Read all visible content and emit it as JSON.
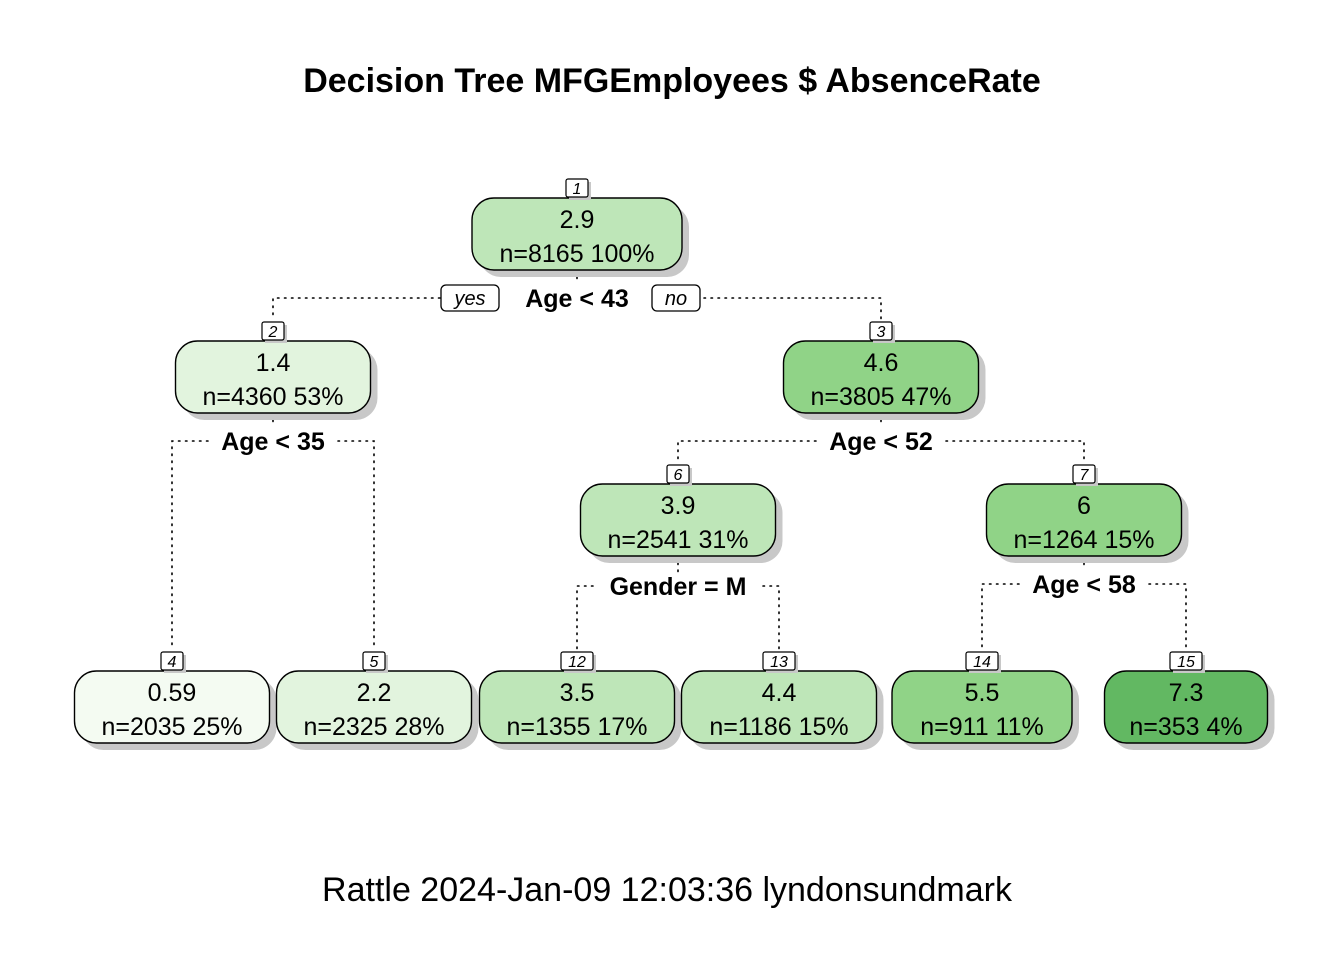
{
  "title": "Decision Tree MFGEmployees $ AbsenceRate",
  "footer": "Rattle 2024-Jan-09 12:03:36 lyndonsundmark",
  "edge_labels": {
    "yes": "yes",
    "no": "no"
  },
  "nodes": [
    {
      "id": "1",
      "value": "2.9",
      "stats": "n=8165  100%",
      "fill": "#bee6b8"
    },
    {
      "id": "2",
      "value": "1.4",
      "stats": "n=4360  53%",
      "fill": "#e2f4de"
    },
    {
      "id": "3",
      "value": "4.6",
      "stats": "n=3805  47%",
      "fill": "#90d387"
    },
    {
      "id": "4",
      "value": "0.59",
      "stats": "n=2035  25%",
      "fill": "#f4fbf2"
    },
    {
      "id": "5",
      "value": "2.2",
      "stats": "n=2325  28%",
      "fill": "#e2f4de"
    },
    {
      "id": "6",
      "value": "3.9",
      "stats": "n=2541  31%",
      "fill": "#bee6b8"
    },
    {
      "id": "7",
      "value": "6",
      "stats": "n=1264  15%",
      "fill": "#90d387"
    },
    {
      "id": "12",
      "value": "3.5",
      "stats": "n=1355  17%",
      "fill": "#bee6b8"
    },
    {
      "id": "13",
      "value": "4.4",
      "stats": "n=1186  15%",
      "fill": "#bee6b8"
    },
    {
      "id": "14",
      "value": "5.5",
      "stats": "n=911  11%",
      "fill": "#90d387"
    },
    {
      "id": "15",
      "value": "7.3",
      "stats": "n=353  4%",
      "fill": "#62b862"
    }
  ],
  "splits": [
    {
      "node": "1",
      "label": "Age < 43"
    },
    {
      "node": "2",
      "label": "Age < 35"
    },
    {
      "node": "3",
      "label": "Age < 52"
    },
    {
      "node": "6",
      "label": "Gender = M"
    },
    {
      "node": "7",
      "label": "Age < 58"
    }
  ]
}
